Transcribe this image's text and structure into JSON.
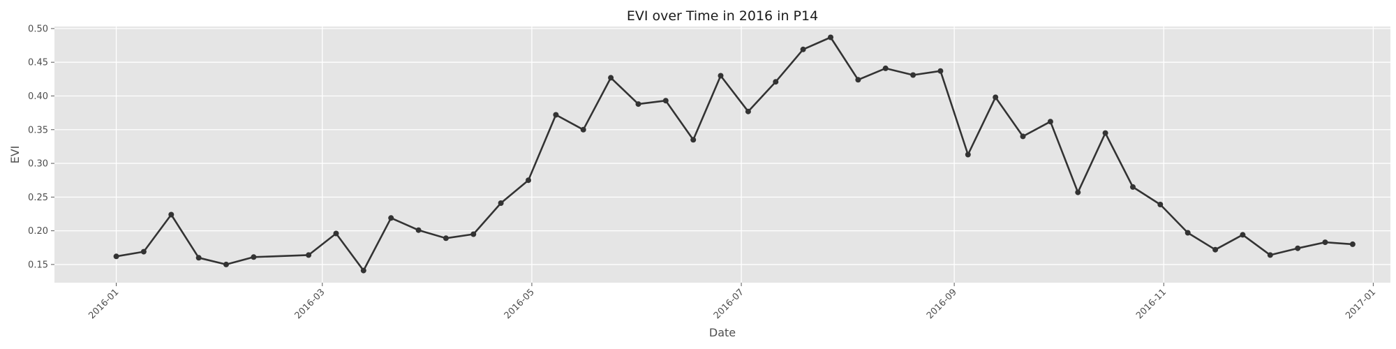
{
  "chart_data": {
    "type": "line",
    "title": "EVI over Time in 2016 in P14",
    "xlabel": "Date",
    "ylabel": "EVI",
    "grid": true,
    "legend": "none",
    "xlim": [
      "2015-12-14",
      "2017-01-06"
    ],
    "ylim": [
      0.123,
      0.503
    ],
    "xticks": [
      "2016-01",
      "2016-03",
      "2016-05",
      "2016-07",
      "2016-09",
      "2016-11",
      "2017-01"
    ],
    "yticks": [
      "0.15",
      "0.20",
      "0.25",
      "0.30",
      "0.35",
      "0.40",
      "0.45",
      "0.50"
    ],
    "colors": {
      "background": "#e5e5e5",
      "grid": "#ffffff",
      "line": "#333333"
    },
    "series": [
      {
        "x": [
          "2016-01-01",
          "2016-01-09",
          "2016-01-17",
          "2016-01-25",
          "2016-02-02",
          "2016-02-10",
          "2016-02-26",
          "2016-03-05",
          "2016-03-13",
          "2016-03-21",
          "2016-03-29",
          "2016-04-06",
          "2016-04-14",
          "2016-04-22",
          "2016-04-30",
          "2016-05-08",
          "2016-05-16",
          "2016-05-24",
          "2016-06-01",
          "2016-06-09",
          "2016-06-17",
          "2016-06-25",
          "2016-07-03",
          "2016-07-11",
          "2016-07-19",
          "2016-07-27",
          "2016-08-04",
          "2016-08-12",
          "2016-08-20",
          "2016-08-28",
          "2016-09-05",
          "2016-09-13",
          "2016-09-21",
          "2016-09-29",
          "2016-10-07",
          "2016-10-15",
          "2016-10-23",
          "2016-10-31",
          "2016-11-08",
          "2016-11-16",
          "2016-11-24",
          "2016-12-02",
          "2016-12-10",
          "2016-12-18",
          "2016-12-26"
        ],
        "y": [
          0.162,
          0.169,
          0.224,
          0.16,
          0.15,
          0.161,
          0.164,
          0.196,
          0.141,
          0.219,
          0.201,
          0.189,
          0.195,
          0.241,
          0.275,
          0.372,
          0.35,
          0.427,
          0.388,
          0.393,
          0.335,
          0.43,
          0.377,
          0.421,
          0.469,
          0.487,
          0.424,
          0.441,
          0.431,
          0.437,
          0.313,
          0.398,
          0.34,
          0.362,
          0.257,
          0.345,
          0.265,
          0.239,
          0.197,
          0.172,
          0.194,
          0.164,
          0.174,
          0.183,
          0.18
        ]
      }
    ]
  }
}
